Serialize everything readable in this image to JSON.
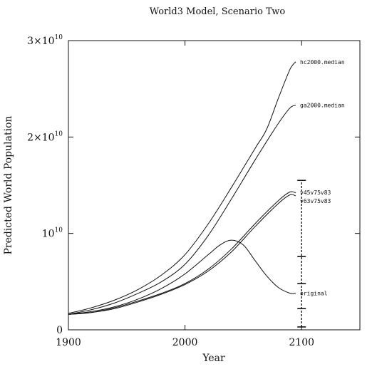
{
  "chart_data": {
    "type": "line",
    "title": "World3 Model, Scenario Two",
    "xlabel": "Year",
    "ylabel": "Predicted World Population",
    "xlim": [
      1900,
      2150
    ],
    "ylim": [
      0,
      30000000000
    ],
    "x_ticks": [
      {
        "value": 1900,
        "label": "1900"
      },
      {
        "value": 2000,
        "label": "2000"
      },
      {
        "value": 2100,
        "label": "2100"
      }
    ],
    "y_ticks": [
      {
        "value": 0,
        "label": "0",
        "exp": ""
      },
      {
        "value": 10000000000,
        "label": "10",
        "exp": "10"
      },
      {
        "value": 20000000000,
        "label": "2×10",
        "exp": "10"
      },
      {
        "value": 30000000000,
        "label": "3×10",
        "exp": "10"
      }
    ],
    "grid": false,
    "series": [
      {
        "name": "hc2000.median",
        "x": [
          1900,
          1920,
          1940,
          1960,
          1980,
          2000,
          2020,
          2040,
          2060,
          2070,
          2080,
          2090,
          2095
        ],
        "values": [
          1700000000.0,
          2300000000.0,
          3100000000.0,
          4200000000.0,
          5700000000.0,
          7800000000.0,
          11000000000.0,
          14800000000.0,
          18800000000.0,
          20800000000.0,
          24000000000.0,
          27000000000.0,
          27800000000.0
        ]
      },
      {
        "name": "ga2000.median",
        "x": [
          1900,
          1920,
          1940,
          1960,
          1980,
          2000,
          2020,
          2040,
          2060,
          2080,
          2090,
          2095
        ],
        "values": [
          1600000000.0,
          2100000000.0,
          2800000000.0,
          3800000000.0,
          5000000000.0,
          6800000000.0,
          9800000000.0,
          13600000000.0,
          17600000000.0,
          21400000000.0,
          23000000000.0,
          23300000000.0
        ]
      },
      {
        "name": "v45v75v83",
        "x": [
          1900,
          1920,
          1940,
          1960,
          1980,
          2000,
          2020,
          2040,
          2060,
          2080,
          2090,
          2095
        ],
        "values": [
          1600000000.0,
          1800000000.0,
          2300000000.0,
          3000000000.0,
          3800000000.0,
          4800000000.0,
          6300000000.0,
          8400000000.0,
          11000000000.0,
          13400000000.0,
          14300000000.0,
          14200000000.0
        ]
      },
      {
        "name": "v63v75v83",
        "x": [
          1900,
          1920,
          1940,
          1960,
          1980,
          2000,
          2020,
          2040,
          2060,
          2080,
          2090,
          2095
        ],
        "values": [
          1600000000.0,
          1800000000.0,
          2200000000.0,
          2900000000.0,
          3700000000.0,
          4700000000.0,
          6100000000.0,
          8100000000.0,
          10700000000.0,
          13100000000.0,
          14000000000.0,
          13900000000.0
        ]
      },
      {
        "name": "original",
        "x": [
          1900,
          1920,
          1940,
          1960,
          1980,
          2000,
          2020,
          2030,
          2040,
          2050,
          2060,
          2070,
          2080,
          2090,
          2095
        ],
        "values": [
          1600000000.0,
          1900000000.0,
          2400000000.0,
          3200000000.0,
          4300000000.0,
          5800000000.0,
          7800000000.0,
          8800000000.0,
          9300000000.0,
          8800000000.0,
          7200000000.0,
          5600000000.0,
          4400000000.0,
          3800000000.0,
          3800000000.0
        ]
      }
    ],
    "range_bar": {
      "x": 2100,
      "ticks": [
        300000000.0,
        2200000000.0,
        4800000000.0,
        7600000000.0,
        15500000000.0
      ]
    }
  }
}
